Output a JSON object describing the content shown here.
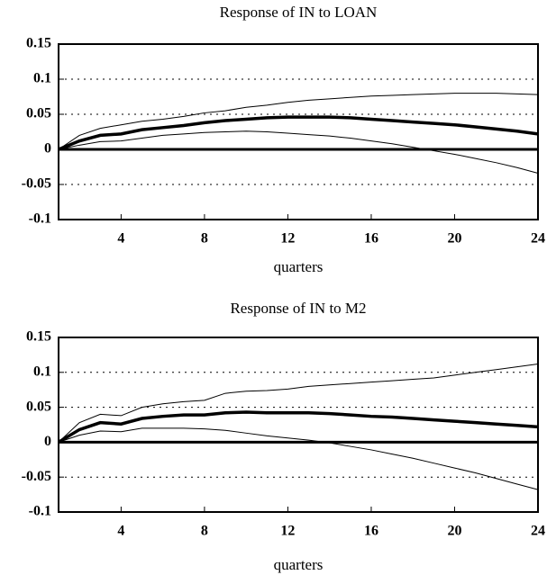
{
  "chart_data": [
    {
      "type": "line",
      "title": "Response of IN to LOAN",
      "x_label": "quarters",
      "x": [
        1,
        2,
        3,
        4,
        5,
        6,
        7,
        8,
        9,
        10,
        11,
        12,
        13,
        14,
        15,
        16,
        17,
        18,
        19,
        20,
        21,
        22,
        23,
        24
      ],
      "series": [
        {
          "color": "#000",
          "width": 3.5,
          "values": [
            0,
            0.012,
            0.02,
            0.022,
            0.028,
            0.031,
            0.034,
            0.038,
            0.041,
            0.043,
            0.045,
            0.046,
            0.046,
            0.046,
            0.045,
            0.043,
            0.041,
            0.039,
            0.037,
            0.035,
            0.032,
            0.029,
            0.026,
            0.022
          ]
        },
        {
          "color": "#000",
          "width": 1,
          "values": [
            0,
            0.02,
            0.03,
            0.035,
            0.04,
            0.043,
            0.047,
            0.052,
            0.055,
            0.06,
            0.063,
            0.067,
            0.07,
            0.072,
            0.074,
            0.076,
            0.077,
            0.078,
            0.079,
            0.08,
            0.08,
            0.08,
            0.079,
            0.078
          ]
        },
        {
          "color": "#000",
          "width": 1,
          "values": [
            0,
            0.006,
            0.011,
            0.012,
            0.016,
            0.02,
            0.022,
            0.024,
            0.025,
            0.026,
            0.025,
            0.023,
            0.021,
            0.019,
            0.016,
            0.012,
            0.008,
            0.003,
            -0.002,
            -0.007,
            -0.013,
            -0.019,
            -0.026,
            -0.034
          ]
        }
      ],
      "xlim": [
        1,
        24
      ],
      "xticks": [
        4,
        8,
        12,
        16,
        20,
        24
      ],
      "ylim": [
        -0.1,
        0.15
      ],
      "yticks": [
        0.15,
        0.1,
        0.05,
        0,
        -0.05,
        -0.1
      ],
      "grid": true
    },
    {
      "type": "line",
      "title": "Response of IN to M2",
      "x_label": "quarters",
      "x": [
        1,
        2,
        3,
        4,
        5,
        6,
        7,
        8,
        9,
        10,
        11,
        12,
        13,
        14,
        15,
        16,
        17,
        18,
        19,
        20,
        21,
        22,
        23,
        24
      ],
      "series": [
        {
          "color": "#000",
          "width": 3.5,
          "values": [
            0,
            0.018,
            0.028,
            0.026,
            0.034,
            0.037,
            0.039,
            0.039,
            0.042,
            0.043,
            0.042,
            0.042,
            0.042,
            0.041,
            0.039,
            0.037,
            0.036,
            0.034,
            0.032,
            0.03,
            0.028,
            0.026,
            0.024,
            0.022
          ]
        },
        {
          "color": "#000",
          "width": 1,
          "values": [
            0,
            0.028,
            0.04,
            0.038,
            0.05,
            0.055,
            0.058,
            0.06,
            0.07,
            0.073,
            0.074,
            0.076,
            0.08,
            0.082,
            0.084,
            0.086,
            0.088,
            0.09,
            0.092,
            0.096,
            0.1,
            0.104,
            0.108,
            0.112
          ]
        },
        {
          "color": "#000",
          "width": 1,
          "values": [
            0,
            0.01,
            0.016,
            0.015,
            0.02,
            0.02,
            0.02,
            0.019,
            0.017,
            0.013,
            0.009,
            0.006,
            0.003,
            -0.001,
            -0.006,
            -0.011,
            -0.017,
            -0.023,
            -0.03,
            -0.037,
            -0.044,
            -0.052,
            -0.06,
            -0.068
          ]
        }
      ],
      "xlim": [
        1,
        24
      ],
      "xticks": [
        4,
        8,
        12,
        16,
        20,
        24
      ],
      "ylim": [
        -0.1,
        0.15
      ],
      "yticks": [
        0.15,
        0.1,
        0.05,
        0,
        -0.05,
        -0.1
      ],
      "grid": true
    }
  ]
}
